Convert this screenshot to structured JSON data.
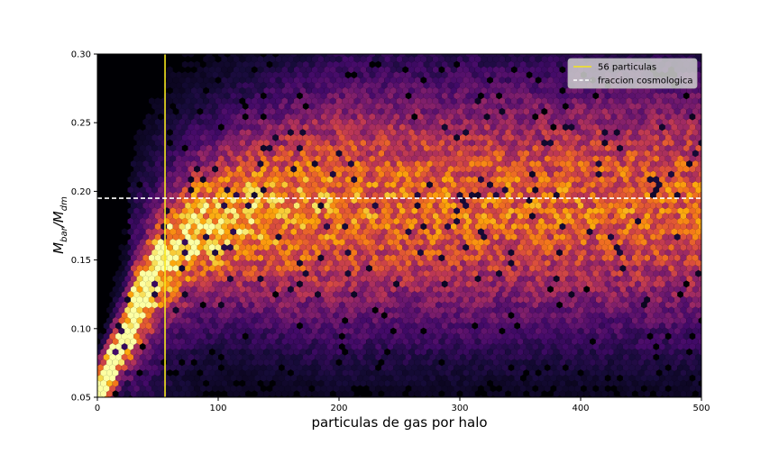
{
  "chart_data": {
    "type": "heatmap",
    "subtype": "hexbin",
    "colormap": "inferno",
    "title": "",
    "xlabel": "particulas de gas por halo",
    "ylabel": "M_bar/M_dm",
    "ylabel_main": "M",
    "ylabel_sub1": "bar",
    "ylabel_sep": "/M",
    "ylabel_sub2": "dm",
    "xlim": [
      0,
      500
    ],
    "ylim": [
      0.05,
      0.3
    ],
    "xticks": [
      0,
      100,
      200,
      300,
      400,
      500
    ],
    "xtick_labels": [
      "0",
      "100",
      "200",
      "300",
      "400",
      "500"
    ],
    "yticks": [
      0.05,
      0.1,
      0.15,
      0.2,
      0.25,
      0.3
    ],
    "ytick_labels": [
      "0.05",
      "0.10",
      "0.15",
      "0.20",
      "0.25",
      "0.30"
    ],
    "grid": false,
    "legend_position": "top-right",
    "density_model": {
      "ridge_center": [
        {
          "x": 5,
          "y": 0.06
        },
        {
          "x": 20,
          "y": 0.09
        },
        {
          "x": 35,
          "y": 0.12
        },
        {
          "x": 55,
          "y": 0.15
        },
        {
          "x": 80,
          "y": 0.17
        },
        {
          "x": 120,
          "y": 0.182
        },
        {
          "x": 200,
          "y": 0.19
        },
        {
          "x": 300,
          "y": 0.19
        },
        {
          "x": 500,
          "y": 0.19
        }
      ],
      "peak_region": {
        "x": [
          0,
          40
        ],
        "y": [
          0.05,
          0.12
        ]
      }
    },
    "reference_lines": [
      {
        "orientation": "vertical",
        "x": 56,
        "color": "#f5e61d",
        "style": "solid",
        "label": "56 particulas"
      },
      {
        "orientation": "horizontal",
        "y": 0.195,
        "color": "#ffffff",
        "style": "dashed",
        "label": "fraccion cosmologica"
      }
    ]
  },
  "legend": {
    "items": [
      {
        "label": "56 particulas",
        "color": "#f5e61d",
        "style": "solid"
      },
      {
        "label": "fraccion cosmologica",
        "color": "#ffffff",
        "style": "dashed"
      }
    ],
    "background": "#cfcfcf"
  }
}
